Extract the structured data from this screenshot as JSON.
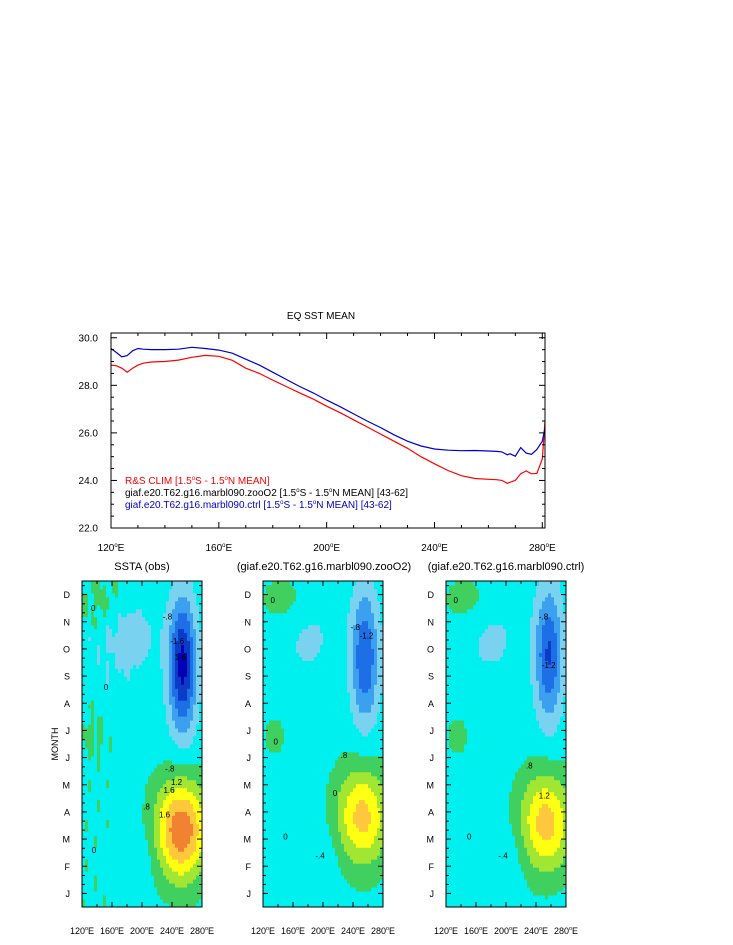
{
  "chart_data": [
    {
      "type": "line",
      "title": "EQ SST MEAN",
      "xlabel": "",
      "ylabel": "",
      "xlim": [
        120,
        281
      ],
      "ylim": [
        22,
        30.2
      ],
      "x_ticks": [
        120,
        160,
        200,
        240,
        280
      ],
      "x_tick_labels": [
        "120",
        "160",
        "200",
        "240",
        "280"
      ],
      "x_tick_suffix": "E",
      "y_ticks": [
        22,
        24,
        26,
        28,
        30
      ],
      "y_tick_labels": [
        "22.0",
        "24.0",
        "26.0",
        "28.0",
        "30.0"
      ],
      "legend_location": "lower-left",
      "series": [
        {
          "name": "R&S CLIM [1.5°S - 1.5°N MEAN]",
          "legend_parts": [
            "R&S CLIM [1.5",
            "S - 1.5",
            "N MEAN]"
          ],
          "color": "#ff0000",
          "x": [
            120,
            122,
            124,
            126,
            128,
            130,
            132,
            135,
            140,
            145,
            150,
            155,
            160,
            165,
            170,
            175,
            180,
            185,
            190,
            195,
            200,
            205,
            210,
            215,
            220,
            225,
            230,
            235,
            240,
            245,
            250,
            255,
            260,
            263,
            265,
            267,
            270,
            272,
            274,
            276,
            278,
            280,
            281
          ],
          "y": [
            28.85,
            28.82,
            28.72,
            28.55,
            28.72,
            28.85,
            28.93,
            28.98,
            29.0,
            29.06,
            29.18,
            29.26,
            29.22,
            29.05,
            28.72,
            28.5,
            28.22,
            27.95,
            27.68,
            27.42,
            27.12,
            26.85,
            26.55,
            26.25,
            25.95,
            25.65,
            25.35,
            25.0,
            24.7,
            24.42,
            24.2,
            24.08,
            24.05,
            24.03,
            24.0,
            23.88,
            24.0,
            24.28,
            24.4,
            24.28,
            24.3,
            24.9,
            26.5
          ]
        },
        {
          "name": "giaf.e20.T62.g16.marbl090.zooO2 [1.5°S - 1.5°N MEAN] [43-62]",
          "legend_parts": [
            "giaf.e20.T62.g16.marbl090.zooO2 [1.5",
            "S - 1.5",
            "N MEAN] [43-62]"
          ],
          "color": "#000000",
          "x": [],
          "y": []
        },
        {
          "name": "giaf.e20.T62.g16.marbl090.ctrl [1.5°S - 1.5°N MEAN] [43-62]",
          "legend_parts": [
            "giaf.e20.T62.g16.marbl090.ctrl [1.5",
            "S - 1.5",
            "N MEAN] [43-62]"
          ],
          "color": "#0000cc",
          "x": [
            120,
            122,
            124,
            126,
            128,
            130,
            132,
            135,
            140,
            145,
            150,
            155,
            160,
            165,
            170,
            175,
            180,
            185,
            190,
            195,
            200,
            205,
            210,
            215,
            220,
            225,
            230,
            235,
            240,
            245,
            250,
            255,
            260,
            263,
            265,
            267,
            268,
            270,
            272,
            274,
            276,
            278,
            280,
            281
          ],
          "y": [
            29.55,
            29.38,
            29.2,
            29.25,
            29.45,
            29.55,
            29.52,
            29.5,
            29.5,
            29.52,
            29.6,
            29.55,
            29.48,
            29.35,
            29.1,
            28.85,
            28.55,
            28.25,
            27.95,
            27.68,
            27.38,
            27.1,
            26.8,
            26.5,
            26.22,
            25.92,
            25.65,
            25.45,
            25.32,
            25.27,
            25.25,
            25.26,
            25.24,
            25.22,
            25.2,
            25.08,
            25.12,
            25.02,
            25.38,
            25.15,
            25.1,
            25.3,
            25.65,
            26.2
          ]
        }
      ]
    },
    {
      "type": "heatmap",
      "title": "SSTA (obs)",
      "ylabel": "MONTH",
      "x_range": [
        120,
        280
      ],
      "x_ticks": [
        120,
        160,
        200,
        240,
        280
      ],
      "x_tick_labels": [
        "120",
        "160",
        "200",
        "240",
        "280"
      ],
      "months": [
        "J",
        "F",
        "M",
        "A",
        "M",
        "J",
        "J",
        "A",
        "S",
        "O",
        "N",
        "D"
      ],
      "contour_interval": 0.4,
      "features": [
        {
          "kind": "warm",
          "x": 252,
          "month": 3.1,
          "peak": 2.1
        },
        {
          "kind": "cold",
          "x": 254,
          "month": 8.4,
          "peak": -2.0
        }
      ],
      "contour_labels": [
        {
          "text": "1.6",
          "x": 236,
          "month": 3.8
        },
        {
          "text": "1.6",
          "x": 230,
          "month": 2.9
        },
        {
          "text": "1.2",
          "x": 246,
          "month": 4.1
        },
        {
          "text": "-.8",
          "x": 237,
          "month": 4.6
        },
        {
          "text": ".8",
          "x": 206,
          "month": 3.2
        },
        {
          "text": "1.6",
          "x": 251,
          "month": 8.7
        },
        {
          "text": "-1.6",
          "x": 247,
          "month": 9.3
        },
        {
          "text": "-.8",
          "x": 234,
          "month": 10.2
        },
        {
          "text": "0",
          "x": 135,
          "month": 10.5
        },
        {
          "text": "0",
          "x": 152,
          "month": 7.6
        },
        {
          "text": "0",
          "x": 136,
          "month": 1.6
        }
      ]
    },
    {
      "type": "heatmap",
      "title": "(giaf.e20.T62.g16.marbl090.zooO2)",
      "x_range": [
        120,
        280
      ],
      "x_ticks": [
        120,
        160,
        200,
        240,
        280
      ],
      "x_tick_labels": [
        "120",
        "160",
        "200",
        "240",
        "280"
      ],
      "months": [
        "J",
        "F",
        "M",
        "A",
        "M",
        "J",
        "J",
        "A",
        "S",
        "O",
        "N",
        "D"
      ],
      "contour_interval": 0.4,
      "features": [
        {
          "kind": "warm",
          "x": 252,
          "month": 3.6,
          "peak": 1.5
        },
        {
          "kind": "cold",
          "x": 256,
          "month": 8.7,
          "peak": -1.45
        }
      ],
      "contour_labels": [
        {
          "text": ".8",
          "x": 228,
          "month": 5.1
        },
        {
          "text": "-1.2",
          "x": 258,
          "month": 9.5
        },
        {
          "text": "-.8",
          "x": 243,
          "month": 9.8
        },
        {
          "text": "0",
          "x": 133,
          "month": 10.8
        },
        {
          "text": "0",
          "x": 216,
          "month": 3.7
        },
        {
          "text": "0",
          "x": 150,
          "month": 2.1
        },
        {
          "text": "0",
          "x": 137,
          "month": 5.6
        },
        {
          "text": "-.4",
          "x": 196,
          "month": 1.4
        }
      ]
    },
    {
      "type": "heatmap",
      "title": "(giaf.e20.T62.g16.marbl090.ctrl)",
      "x_range": [
        120,
        280
      ],
      "x_ticks": [
        120,
        160,
        200,
        240,
        280
      ],
      "x_tick_labels": [
        "120",
        "160",
        "200",
        "240",
        "280"
      ],
      "months": [
        "J",
        "F",
        "M",
        "A",
        "M",
        "J",
        "J",
        "A",
        "S",
        "O",
        "N",
        "D"
      ],
      "contour_interval": 0.4,
      "features": [
        {
          "kind": "warm",
          "x": 253,
          "month": 3.4,
          "peak": 1.55
        },
        {
          "kind": "cold",
          "x": 257,
          "month": 8.8,
          "peak": -1.5
        }
      ],
      "contour_labels": [
        {
          "text": ".8",
          "x": 231,
          "month": 4.7
        },
        {
          "text": "1.2",
          "x": 251,
          "month": 3.6
        },
        {
          "text": "-.8",
          "x": 250,
          "month": 10.2
        },
        {
          "text": "-1.2",
          "x": 257,
          "month": 8.4
        },
        {
          "text": "0",
          "x": 133,
          "month": 10.8
        },
        {
          "text": "0",
          "x": 151,
          "month": 2.1
        },
        {
          "text": "-.4",
          "x": 196,
          "month": 1.4
        }
      ]
    }
  ]
}
